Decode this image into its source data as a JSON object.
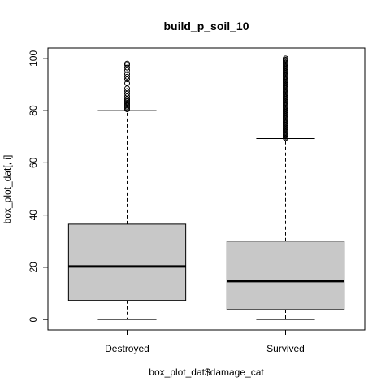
{
  "chart_data": {
    "type": "box",
    "title": "build_p_soil_10",
    "xlabel": "box_plot_dat$damage_cat",
    "ylabel": "box_plot_dat[, i]",
    "categories": [
      "Destroyed",
      "Survived"
    ],
    "ylim": [
      -4,
      104
    ],
    "yticks": [
      0,
      20,
      40,
      60,
      80,
      100
    ],
    "grid": false,
    "legend": "none",
    "colors": {
      "box_fill": "#c8c8c8",
      "stroke": "#000000"
    },
    "boxes": [
      {
        "category": "Destroyed",
        "whisker_low": 0,
        "q1": 7.3,
        "median": 20.3,
        "q3": 36.5,
        "whisker_high": 80,
        "outliers": [
          80.5,
          81,
          81.5,
          82,
          82.5,
          83,
          83.5,
          84,
          84.5,
          85.5,
          86.5,
          87.5,
          88.5,
          90.5,
          92,
          93,
          94,
          95.5,
          96.5,
          97.5,
          98
        ]
      },
      {
        "category": "Survived",
        "whisker_low": 0,
        "q1": 3.8,
        "median": 14.7,
        "q3": 30,
        "whisker_high": 69.3,
        "outliers": [
          69.5,
          70,
          70.5,
          71,
          71.5,
          72,
          72.5,
          73,
          73.5,
          74,
          74.5,
          75,
          75.5,
          76,
          76.5,
          77,
          77.5,
          78,
          78.5,
          79,
          79.5,
          80,
          80.5,
          81,
          81.5,
          82,
          82.5,
          83,
          83.5,
          84,
          84.5,
          85,
          85.5,
          86,
          86.5,
          87,
          87.5,
          88,
          88.5,
          89,
          89.5,
          90,
          90.5,
          91,
          91.5,
          92,
          92.5,
          93,
          93.5,
          94,
          94.5,
          95,
          95.5,
          96,
          96.5,
          97,
          97.5,
          98,
          98.5,
          99,
          99.5,
          100
        ]
      }
    ]
  }
}
